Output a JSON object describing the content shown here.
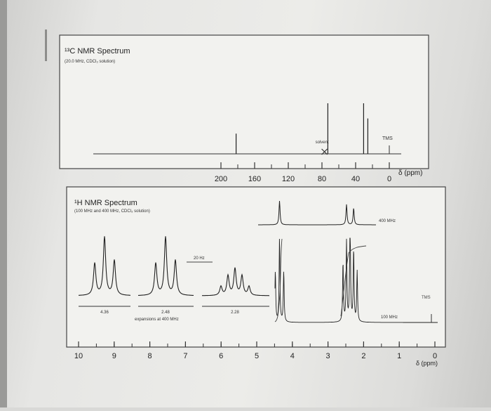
{
  "chart_data": [
    {
      "type": "line",
      "title": "¹³C NMR Spectrum",
      "subtitle": "(20.0 MHz, CDCl₃ solution)",
      "xlabel": "δ (ppm)",
      "xlim": [
        220,
        -5
      ],
      "x_reversed": true,
      "ticks": [
        "200",
        "160",
        "120",
        "80",
        "40",
        "0"
      ],
      "tick_values": [
        200,
        160,
        120,
        80,
        40,
        0
      ],
      "peaks": [
        {
          "ppm": 182.0,
          "height": 0.4
        },
        {
          "ppm": 73.0,
          "height": 1.0
        },
        {
          "ppm": 30.5,
          "height": 1.0
        },
        {
          "ppm": 25.5,
          "height": 0.7
        }
      ],
      "annotations": {
        "solvent": "solvent",
        "solvent_ppm": 77,
        "tms": "TMS",
        "tms_ppm": 0
      }
    },
    {
      "type": "line",
      "title": "¹H NMR Spectrum",
      "subtitle": "(100 MHz and 400 MHz, CDCl₃ solution)",
      "xlabel": "δ (ppm)",
      "xlim": [
        10.2,
        -0.3
      ],
      "x_reversed": true,
      "ticks": [
        "10",
        "9",
        "8",
        "7",
        "6",
        "5",
        "4",
        "3",
        "2",
        "1",
        "0"
      ],
      "tick_values": [
        10,
        9,
        8,
        7,
        6,
        5,
        4,
        3,
        2,
        1,
        0
      ],
      "labels": {
        "mhz_400": "400 MHz",
        "mhz_100": "100 MHz",
        "tms": "TMS"
      },
      "peaks_400": [
        {
          "ppm": 4.36,
          "height": 1.0
        },
        {
          "ppm": 2.48,
          "height": 0.85
        },
        {
          "ppm": 2.28,
          "height": 0.7
        }
      ],
      "peaks_100": [
        {
          "ppm": 4.36,
          "height": 1.0
        },
        {
          "ppm": 2.48,
          "height": 0.95
        },
        {
          "ppm": 2.28,
          "height": 0.85
        }
      ],
      "expansions": {
        "caption": "expansions at 400 MHz",
        "scale_label": "20 Hz",
        "multiplets": [
          {
            "label": "4.36",
            "lines": [
              0.55,
              1.0,
              0.6
            ]
          },
          {
            "label": "2.48",
            "lines": [
              0.55,
              1.0,
              0.6
            ]
          },
          {
            "label": "2.28",
            "lines": [
              0.25,
              0.55,
              0.75,
              0.55,
              0.25
            ]
          }
        ]
      }
    }
  ]
}
